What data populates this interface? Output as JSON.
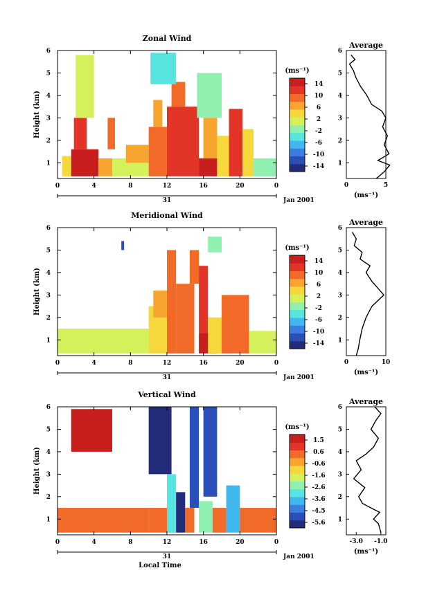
{
  "chart_data": [
    {
      "type": "heatmap",
      "title": "Zonal Wind",
      "ylabel": "Height (km)",
      "xlim": [
        0,
        24
      ],
      "ylim": [
        0.3,
        6
      ],
      "x_ticks": [
        "0",
        "4",
        "8",
        "12",
        "16",
        "20",
        "0"
      ],
      "y_ticks": [
        "1",
        "2",
        "3",
        "4",
        "5",
        "6"
      ],
      "date_day": "31",
      "date_label": "Jan 2001",
      "colorbar": {
        "unit": "(ms⁻¹)",
        "ticks": [
          "14",
          "10",
          "6",
          "2",
          "-2",
          "-6",
          "-10",
          "-14"
        ],
        "range": [
          -16,
          16
        ]
      },
      "cells": [
        {
          "t0": 0.5,
          "t1": 1.5,
          "h0": 0.4,
          "h1": 1.3,
          "v": 3
        },
        {
          "t0": 1.5,
          "t1": 4.5,
          "h0": 0.4,
          "h1": 1.6,
          "v": 14
        },
        {
          "t0": 1.8,
          "t1": 3.2,
          "h0": 1.6,
          "h1": 3.0,
          "v": 12
        },
        {
          "t0": 2.0,
          "t1": 4.0,
          "h0": 3.0,
          "h1": 5.8,
          "v": 2
        },
        {
          "t0": 4.5,
          "t1": 6.0,
          "h0": 0.4,
          "h1": 1.2,
          "v": 6
        },
        {
          "t0": 5.5,
          "t1": 6.3,
          "h0": 1.6,
          "h1": 3.0,
          "v": 8
        },
        {
          "t0": 6.0,
          "t1": 10.0,
          "h0": 0.4,
          "h1": 1.2,
          "v": 1
        },
        {
          "t0": 7.5,
          "t1": 10.0,
          "h0": 1.0,
          "h1": 1.8,
          "v": 6
        },
        {
          "t0": 10.0,
          "t1": 12.0,
          "h0": 0.4,
          "h1": 2.6,
          "v": 9
        },
        {
          "t0": 10.5,
          "t1": 11.5,
          "h0": 2.6,
          "h1": 3.8,
          "v": 6
        },
        {
          "t0": 12.0,
          "t1": 15.5,
          "h0": 0.4,
          "h1": 3.5,
          "v": 11
        },
        {
          "t0": 12.5,
          "t1": 14.0,
          "h0": 3.5,
          "h1": 4.6,
          "v": 8
        },
        {
          "t0": 10.2,
          "t1": 13.0,
          "h0": 4.5,
          "h1": 5.9,
          "v": -3
        },
        {
          "t0": 15.5,
          "t1": 17.5,
          "h0": 0.4,
          "h1": 1.2,
          "v": 15
        },
        {
          "t0": 15.3,
          "t1": 18.0,
          "h0": 3.0,
          "h1": 5.0,
          "v": -2
        },
        {
          "t0": 16.0,
          "t1": 17.5,
          "h0": 1.2,
          "h1": 3.0,
          "v": 7
        },
        {
          "t0": 17.5,
          "t1": 19.0,
          "h0": 0.4,
          "h1": 2.2,
          "v": 5
        },
        {
          "t0": 18.8,
          "t1": 20.3,
          "h0": 0.4,
          "h1": 3.4,
          "v": 12
        },
        {
          "t0": 20.3,
          "t1": 21.5,
          "h0": 0.4,
          "h1": 2.5,
          "v": 5
        },
        {
          "t0": 21.5,
          "t1": 24.0,
          "h0": 0.4,
          "h1": 1.2,
          "v": -1
        }
      ],
      "avg_profile": {
        "title": "Average",
        "xlabel": "(ms⁻¹)",
        "x_ticks": [
          "0",
          "5"
        ],
        "x_range": [
          0,
          5
        ],
        "h": [
          0.3,
          0.6,
          0.9,
          1.1,
          1.4,
          1.8,
          2.2,
          2.6,
          3.0,
          3.3,
          3.6,
          4.0,
          4.4,
          4.8,
          5.1,
          5.4,
          5.6,
          5.8
        ],
        "v": [
          3.8,
          4.8,
          5.5,
          4.0,
          5.4,
          4.8,
          5.2,
          4.6,
          5.0,
          4.5,
          3.2,
          2.6,
          1.8,
          1.2,
          0.9,
          0.4,
          1.1,
          0.6
        ]
      }
    },
    {
      "type": "heatmap",
      "title": "Meridional Wind",
      "ylabel": "Height (km)",
      "xlim": [
        0,
        24
      ],
      "ylim": [
        0.3,
        6
      ],
      "x_ticks": [
        "0",
        "4",
        "8",
        "12",
        "16",
        "20",
        "0"
      ],
      "y_ticks": [
        "1",
        "2",
        "3",
        "4",
        "5",
        "6"
      ],
      "date_day": "31",
      "date_label": "Jan 2001",
      "colorbar": {
        "unit": "(ms⁻¹)",
        "ticks": [
          "14",
          "10",
          "6",
          "2",
          "-2",
          "-6",
          "-10",
          "-14"
        ],
        "range": [
          -16,
          16
        ]
      },
      "cells": [
        {
          "t0": 0.0,
          "t1": 10.0,
          "h0": 0.4,
          "h1": 1.5,
          "v": 0
        },
        {
          "t0": 7.0,
          "t1": 7.3,
          "h0": 5.0,
          "h1": 5.4,
          "v": -12
        },
        {
          "t0": 10.0,
          "t1": 12.0,
          "h0": 0.4,
          "h1": 2.5,
          "v": 4
        },
        {
          "t0": 10.5,
          "t1": 12.5,
          "h0": 2.0,
          "h1": 3.2,
          "v": 7
        },
        {
          "t0": 12.0,
          "t1": 13.0,
          "h0": 0.4,
          "h1": 5.0,
          "v": 9
        },
        {
          "t0": 13.0,
          "t1": 15.0,
          "h0": 0.4,
          "h1": 3.5,
          "v": 8
        },
        {
          "t0": 14.5,
          "t1": 15.5,
          "h0": 3.5,
          "h1": 5.0,
          "v": 10
        },
        {
          "t0": 15.5,
          "t1": 17.5,
          "h0": 0.4,
          "h1": 1.3,
          "v": 15
        },
        {
          "t0": 15.5,
          "t1": 16.5,
          "h0": 1.3,
          "h1": 4.3,
          "v": 11
        },
        {
          "t0": 16.5,
          "t1": 18.0,
          "h0": 0.4,
          "h1": 2.0,
          "v": 4
        },
        {
          "t0": 18.0,
          "t1": 21.0,
          "h0": 0.4,
          "h1": 3.0,
          "v": 9
        },
        {
          "t0": 21.0,
          "t1": 24.0,
          "h0": 0.4,
          "h1": 1.4,
          "v": 1
        },
        {
          "t0": 16.5,
          "t1": 18.0,
          "h0": 4.9,
          "h1": 5.6,
          "v": -2
        }
      ],
      "avg_profile": {
        "title": "Average",
        "xlabel": "(ms⁻¹)",
        "x_ticks": [
          "0",
          "10"
        ],
        "x_range": [
          0,
          10
        ],
        "h": [
          0.3,
          0.6,
          1.0,
          1.5,
          2.0,
          2.5,
          3.0,
          3.3,
          3.6,
          4.0,
          4.3,
          4.6,
          4.9,
          5.2,
          5.5,
          5.8
        ],
        "v": [
          2.5,
          3.0,
          3.4,
          4.0,
          5.0,
          6.5,
          9.5,
          8.0,
          6.5,
          5.0,
          6.0,
          3.5,
          4.0,
          2.0,
          2.5,
          1.5
        ]
      }
    },
    {
      "type": "heatmap",
      "title": "Vertical Wind",
      "ylabel": "Height (km)",
      "xlabel": "Local Time",
      "xlim": [
        0,
        24
      ],
      "ylim": [
        0.3,
        6
      ],
      "x_ticks": [
        "0",
        "4",
        "8",
        "12",
        "16",
        "20",
        "0"
      ],
      "y_ticks": [
        "1",
        "2",
        "3",
        "4",
        "5",
        "6"
      ],
      "date_day": "31",
      "date_label": "Jan 2001",
      "colorbar": {
        "unit": "(ms⁻¹)",
        "ticks": [
          "1.5",
          "0.6",
          "-0.6",
          "-1.6",
          "-2.6",
          "-3.6",
          "-4.5",
          "-5.6"
        ],
        "range": [
          -6.0,
          2.0
        ]
      },
      "cells": [
        {
          "t0": 1.5,
          "t1": 6.0,
          "h0": 4.0,
          "h1": 5.9,
          "v": 1.7
        },
        {
          "t0": 0.0,
          "t1": 10.0,
          "h0": 0.4,
          "h1": 1.5,
          "v": 0.3
        },
        {
          "t0": 10.0,
          "t1": 12.0,
          "h0": 0.4,
          "h1": 1.5,
          "v": 0.1
        },
        {
          "t0": 10.0,
          "t1": 12.5,
          "h0": 3.0,
          "h1": 6.0,
          "v": -5.4
        },
        {
          "t0": 12.0,
          "t1": 13.0,
          "h0": 0.4,
          "h1": 3.0,
          "v": -3.2
        },
        {
          "t0": 13.0,
          "t1": 14.0,
          "h0": 0.4,
          "h1": 2.2,
          "v": -5.8
        },
        {
          "t0": 14.0,
          "t1": 15.0,
          "h0": 0.4,
          "h1": 1.5,
          "v": 0.1
        },
        {
          "t0": 14.5,
          "t1": 15.5,
          "h0": 1.5,
          "h1": 6.0,
          "v": -5.0
        },
        {
          "t0": 15.5,
          "t1": 17.0,
          "h0": 0.4,
          "h1": 1.8,
          "v": -2.5
        },
        {
          "t0": 16.0,
          "t1": 17.5,
          "h0": 2.0,
          "h1": 6.0,
          "v": -5.0
        },
        {
          "t0": 17.0,
          "t1": 18.5,
          "h0": 0.4,
          "h1": 1.5,
          "v": 0.2
        },
        {
          "t0": 18.5,
          "t1": 20.0,
          "h0": 0.4,
          "h1": 2.5,
          "v": -4.0
        },
        {
          "t0": 20.0,
          "t1": 24.0,
          "h0": 0.4,
          "h1": 1.5,
          "v": 0.2
        }
      ],
      "avg_profile": {
        "title": "Average",
        "xlabel": "(ms⁻¹)",
        "x_ticks": [
          "-3.0",
          "-1.0"
        ],
        "x_range": [
          -3.8,
          -0.6
        ],
        "h": [
          0.4,
          0.8,
          1.0,
          1.3,
          1.5,
          1.7,
          2.0,
          2.4,
          2.8,
          3.2,
          3.6,
          3.9,
          4.2,
          4.6,
          5.0,
          5.4,
          5.7,
          6.0
        ],
        "v": [
          -1.0,
          -1.2,
          -1.6,
          -1.1,
          -1.8,
          -2.5,
          -2.8,
          -2.3,
          -3.2,
          -2.6,
          -3.0,
          -2.2,
          -1.6,
          -1.2,
          -1.8,
          -1.4,
          -1.0,
          -1.5
        ]
      }
    }
  ]
}
